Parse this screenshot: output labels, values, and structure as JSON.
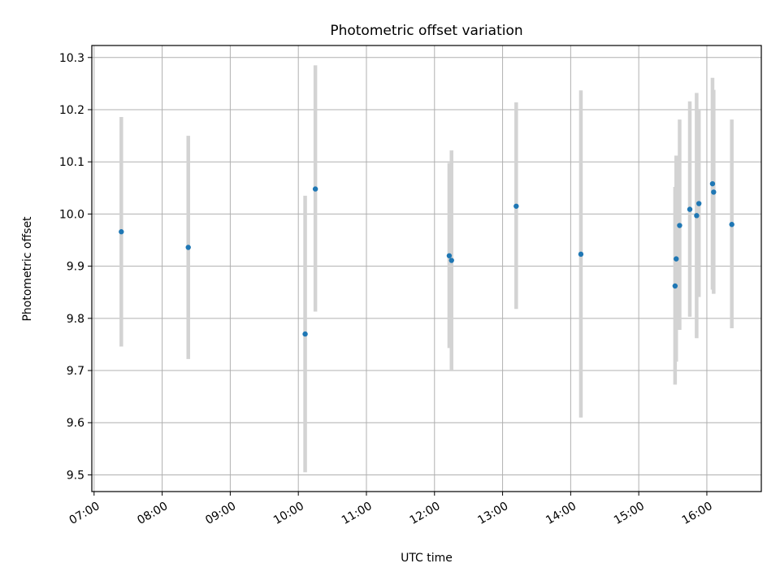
{
  "chart_data": {
    "type": "scatter",
    "title": "Photometric offset variation",
    "xlabel": "UTC time",
    "ylabel": "Photometric offset",
    "grid": true,
    "x_ticks": [
      "07:00",
      "08:00",
      "09:00",
      "10:00",
      "11:00",
      "12:00",
      "13:00",
      "14:00",
      "15:00",
      "16:00"
    ],
    "y_ticks": [
      "9.5",
      "9.6",
      "9.7",
      "9.8",
      "9.9",
      "10.0",
      "10.1",
      "10.2",
      "10.3"
    ],
    "xlim": [
      "06:58",
      "16:48"
    ],
    "ylim": [
      9.468,
      10.323
    ],
    "colors": {
      "point": "#1f77b4",
      "errorbar": "#d3d3d3",
      "grid": "#b0b0b0"
    },
    "points": [
      {
        "time": "07:24",
        "y": 9.966,
        "ylow": 9.746,
        "yhigh": 10.186
      },
      {
        "time": "08:23",
        "y": 9.936,
        "ylow": 9.722,
        "yhigh": 10.15
      },
      {
        "time": "10:06",
        "y": 9.77,
        "ylow": 9.505,
        "yhigh": 10.035
      },
      {
        "time": "10:15",
        "y": 10.048,
        "ylow": 9.813,
        "yhigh": 10.285
      },
      {
        "time": "12:13",
        "y": 9.92,
        "ylow": 9.743,
        "yhigh": 10.098
      },
      {
        "time": "12:15",
        "y": 9.911,
        "ylow": 9.7,
        "yhigh": 10.122
      },
      {
        "time": "13:12",
        "y": 10.015,
        "ylow": 9.818,
        "yhigh": 10.214
      },
      {
        "time": "14:09",
        "y": 9.923,
        "ylow": 9.61,
        "yhigh": 10.237
      },
      {
        "time": "15:32",
        "y": 9.862,
        "ylow": 9.673,
        "yhigh": 10.052
      },
      {
        "time": "15:33",
        "y": 9.914,
        "ylow": 9.717,
        "yhigh": 10.112
      },
      {
        "time": "15:36",
        "y": 9.978,
        "ylow": 9.778,
        "yhigh": 10.181
      },
      {
        "time": "15:45",
        "y": 10.009,
        "ylow": 9.803,
        "yhigh": 10.216
      },
      {
        "time": "15:51",
        "y": 9.997,
        "ylow": 9.762,
        "yhigh": 10.232
      },
      {
        "time": "15:53",
        "y": 10.02,
        "ylow": 9.841,
        "yhigh": 10.2
      },
      {
        "time": "16:05",
        "y": 10.058,
        "ylow": 9.855,
        "yhigh": 10.261
      },
      {
        "time": "16:06",
        "y": 10.042,
        "ylow": 9.847,
        "yhigh": 10.238
      },
      {
        "time": "16:22",
        "y": 9.98,
        "ylow": 9.781,
        "yhigh": 10.181
      }
    ]
  }
}
